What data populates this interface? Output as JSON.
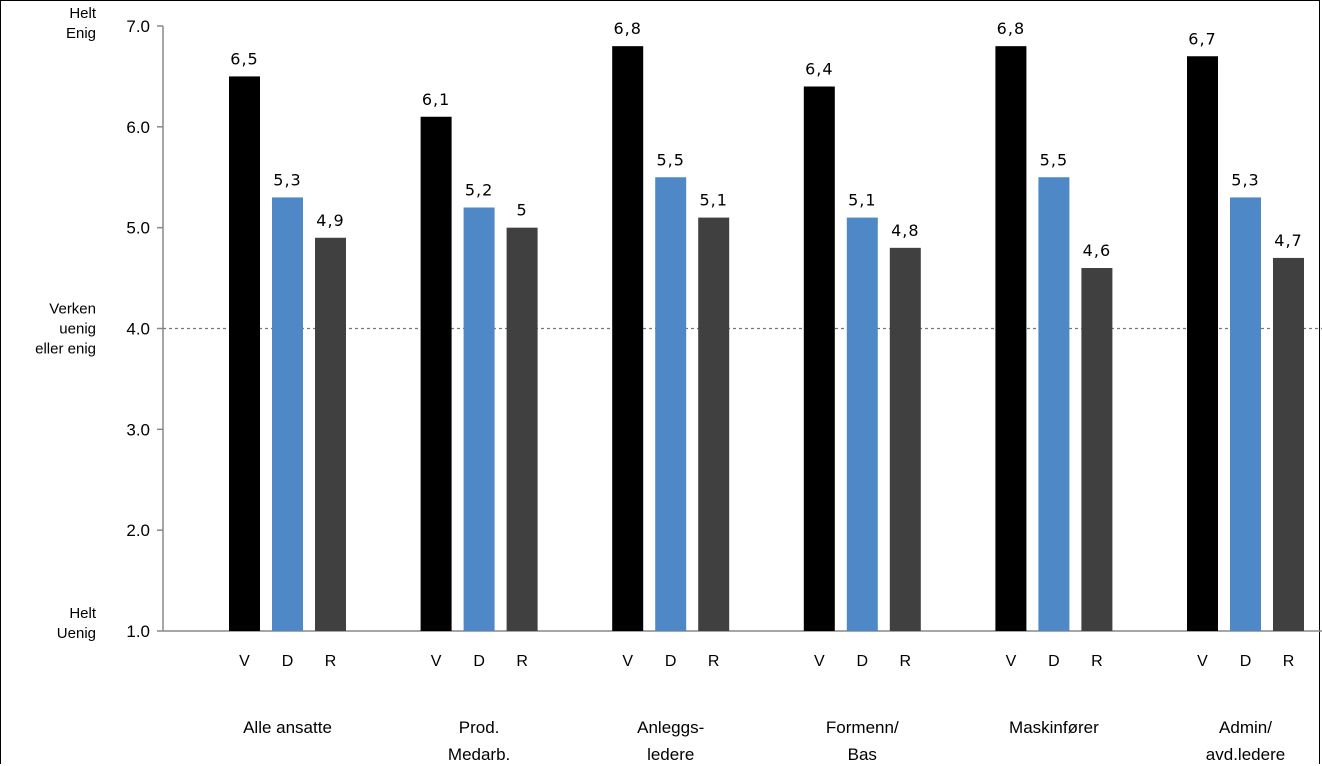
{
  "chart_data": {
    "type": "bar",
    "title": "",
    "xlabel": "",
    "ylabel": "",
    "ylim": [
      1,
      7
    ],
    "y_ticks": [
      "1.0",
      "2.0",
      "3.0",
      "4.0",
      "5.0",
      "6.0",
      "7.0"
    ],
    "y_side_labels": [
      {
        "value": 7,
        "lines": [
          "Helt",
          "Enig"
        ]
      },
      {
        "value": 4,
        "lines": [
          "Verken",
          "uenig",
          "eller enig"
        ]
      },
      {
        "value": 1,
        "lines": [
          "Helt",
          "Uenig"
        ]
      }
    ],
    "reference_line": {
      "value": 4,
      "style": "dashed"
    },
    "grid": false,
    "sub_categories": [
      "V",
      "D",
      "R"
    ],
    "groups": [
      {
        "label": [
          "Alle ansatte"
        ],
        "values": [
          6.5,
          5.3,
          4.9
        ],
        "value_labels": [
          "6,5",
          "5,3",
          "4,9"
        ]
      },
      {
        "label": [
          "Prod.",
          "Medarb."
        ],
        "values": [
          6.1,
          5.2,
          5.0
        ],
        "value_labels": [
          "6,1",
          "5,2",
          "5"
        ]
      },
      {
        "label": [
          "Anleggs-",
          "ledere"
        ],
        "values": [
          6.8,
          5.5,
          5.1
        ],
        "value_labels": [
          "6,8",
          "5,5",
          "5,1"
        ]
      },
      {
        "label": [
          "Formenn/",
          "Bas"
        ],
        "values": [
          6.4,
          5.1,
          4.8
        ],
        "value_labels": [
          "6,4",
          "5,1",
          "4,8"
        ]
      },
      {
        "label": [
          "Maskinfører"
        ],
        "values": [
          6.8,
          5.5,
          4.6
        ],
        "value_labels": [
          "6,8",
          "5,5",
          "4,6"
        ]
      },
      {
        "label": [
          "Admin/",
          "avd.ledere"
        ],
        "values": [
          6.7,
          5.3,
          4.7
        ],
        "value_labels": [
          "6,7",
          "5,3",
          "4,7"
        ]
      }
    ],
    "colors": {
      "V": "#000000",
      "D": "#4f88c6",
      "R": "#404040"
    }
  }
}
